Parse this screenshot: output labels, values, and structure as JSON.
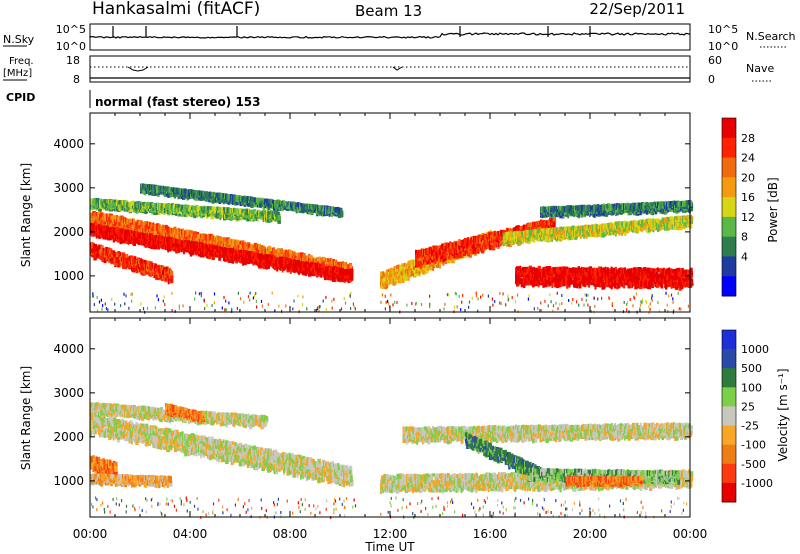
{
  "header": {
    "station": "Hankasalmi (fitACF)",
    "beam": "Beam 13",
    "date": "22/Sep/2011"
  },
  "strip_panels": {
    "nsky": {
      "label": "N.Sky",
      "ticks": [
        "10^5",
        "10^0"
      ],
      "right_label": "N.Search",
      "right_ticks": [
        "10^5",
        "10^0"
      ]
    },
    "freq": {
      "label_line1": "Freq.",
      "label_line2": "[MHz]",
      "ticks": [
        "18",
        "8"
      ],
      "right_label": "Nave",
      "right_ticks": [
        "60",
        "0"
      ]
    },
    "cpid": {
      "label": "CPID",
      "value": "normal (fast stereo) 153"
    }
  },
  "colors": {
    "power": [
      "#0000ff",
      "#1e3ca0",
      "#2e7d4f",
      "#5bb848",
      "#d6d614",
      "#f59b0f",
      "#f06a10",
      "#ff2200",
      "#e60000"
    ],
    "velocity": [
      "#1e2ed8",
      "#2a4aa8",
      "#2f7a3d",
      "#7ccf48",
      "#c8c8c0",
      "#f7a62a",
      "#f07c14",
      "#ff3a10",
      "#e60000"
    ],
    "ground_scatter": "#c8c8c0"
  },
  "chart_data": [
    {
      "type": "heatmap",
      "name": "power",
      "xlabel": "",
      "ylabel": "Slant Range [km]",
      "x_ticks": [
        "00:00",
        "04:00",
        "08:00",
        "12:00",
        "16:00",
        "20:00",
        "00:00"
      ],
      "xlim_hours": [
        0,
        24
      ],
      "y_ticks": [
        "1000",
        "2000",
        "3000",
        "4000"
      ],
      "ylim": [
        180,
        4700
      ],
      "colorbar": {
        "label": "Power [dB]",
        "ticks": [
          "28",
          "24",
          "20",
          "16",
          "12",
          "8",
          "4"
        ]
      },
      "echo_bands": [
        {
          "start_h": 0.0,
          "end_h": 3.2,
          "range_start": 1650,
          "range_end": 1050,
          "width": 260,
          "level": 7
        },
        {
          "start_h": 0.0,
          "end_h": 10.4,
          "range_start": 2350,
          "range_end": 1150,
          "width": 320,
          "level": 6
        },
        {
          "start_h": 0.0,
          "end_h": 10.4,
          "range_start": 2100,
          "range_end": 1050,
          "width": 220,
          "level": 8
        },
        {
          "start_h": 0.0,
          "end_h": 7.5,
          "range_start": 2700,
          "range_end": 2400,
          "width": 160,
          "level": 3
        },
        {
          "start_h": 2.0,
          "end_h": 10.0,
          "range_start": 3050,
          "range_end": 2500,
          "width": 120,
          "level": 2
        },
        {
          "start_h": 11.6,
          "end_h": 16.0,
          "range_start": 950,
          "range_end": 1900,
          "width": 320,
          "level": 5
        },
        {
          "start_h": 13.0,
          "end_h": 18.5,
          "range_start": 1450,
          "range_end": 2200,
          "width": 300,
          "level": 7
        },
        {
          "start_h": 17.0,
          "end_h": 24.0,
          "range_start": 1050,
          "range_end": 1000,
          "width": 380,
          "level": 8
        },
        {
          "start_h": 16.5,
          "end_h": 24.0,
          "range_start": 1900,
          "range_end": 2300,
          "width": 200,
          "level": 4
        },
        {
          "start_h": 18.0,
          "end_h": 24.0,
          "range_start": 2500,
          "range_end": 2650,
          "width": 160,
          "level": 2
        }
      ]
    },
    {
      "type": "heatmap",
      "name": "velocity",
      "xlabel": "Time UT",
      "ylabel": "Slant Range [km]",
      "x_ticks": [
        "00:00",
        "04:00",
        "08:00",
        "12:00",
        "16:00",
        "20:00",
        "00:00"
      ],
      "xlim_hours": [
        0,
        24
      ],
      "y_ticks": [
        "1000",
        "2000",
        "3000",
        "4000"
      ],
      "ylim": [
        180,
        4700
      ],
      "colorbar": {
        "label": "Velocity [m s⁻¹]",
        "ticks": [
          "1000",
          "500",
          "100",
          "25",
          "-25",
          "-100",
          "-500",
          "-1000"
        ]
      },
      "echo_bands": [
        {
          "start_h": 0.0,
          "end_h": 10.4,
          "range_start": 2350,
          "range_end": 1150,
          "width": 420,
          "level": 4
        },
        {
          "start_h": 0.0,
          "end_h": 7.0,
          "range_start": 2700,
          "range_end": 2400,
          "width": 200,
          "level": 4
        },
        {
          "start_h": 0.0,
          "end_h": 1.0,
          "range_start": 1450,
          "range_end": 1300,
          "width": 300,
          "level": 6
        },
        {
          "start_h": 0.0,
          "end_h": 3.2,
          "range_start": 1100,
          "range_end": 1050,
          "width": 150,
          "level": 5
        },
        {
          "start_h": 3.0,
          "end_h": 4.5,
          "range_start": 2700,
          "range_end": 2500,
          "width": 150,
          "level": 6
        },
        {
          "start_h": 11.6,
          "end_h": 24.0,
          "range_start": 1000,
          "range_end": 1100,
          "width": 330,
          "level": 4
        },
        {
          "start_h": 12.5,
          "end_h": 24.0,
          "range_start": 2100,
          "range_end": 2200,
          "width": 280,
          "level": 4
        },
        {
          "start_h": 15.0,
          "end_h": 18.0,
          "range_start": 2000,
          "range_end": 1200,
          "width": 250,
          "level": 2
        },
        {
          "start_h": 17.5,
          "end_h": 23.5,
          "range_start": 1200,
          "range_end": 1150,
          "width": 200,
          "level": 3
        },
        {
          "start_h": 19.0,
          "end_h": 22.0,
          "range_start": 1050,
          "range_end": 1050,
          "width": 120,
          "level": 6
        }
      ]
    }
  ]
}
